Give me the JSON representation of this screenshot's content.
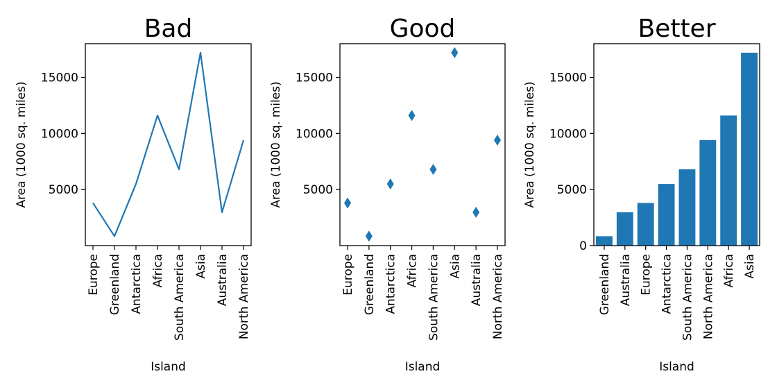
{
  "chart_data": [
    {
      "type": "line",
      "title": "Bad",
      "xlabel": "Island",
      "ylabel": "Area (1000 sq. miles)",
      "categories": [
        "Europe",
        "Greenland",
        "Antarctica",
        "Africa",
        "South America",
        "Asia",
        "Australia",
        "North America"
      ],
      "values": [
        3800,
        840,
        5500,
        11600,
        6800,
        17200,
        2970,
        9400
      ],
      "yticks": [
        "5000",
        "10000",
        "15000"
      ],
      "ylim": [
        0,
        18000
      ],
      "color": "#1f77b4"
    },
    {
      "type": "scatter",
      "title": "Good",
      "xlabel": "Island",
      "ylabel": "Area (1000 sq. miles)",
      "categories": [
        "Europe",
        "Greenland",
        "Antarctica",
        "Africa",
        "South America",
        "Asia",
        "Australia",
        "North America"
      ],
      "values": [
        3800,
        840,
        5500,
        11600,
        6800,
        17200,
        2970,
        9400
      ],
      "yticks": [
        "5000",
        "10000",
        "15000"
      ],
      "ylim": [
        0,
        18000
      ],
      "marker": "diamond",
      "color": "#1f77b4"
    },
    {
      "type": "bar",
      "title": "Better",
      "xlabel": "Island",
      "ylabel": "Area (1000 sq. miles)",
      "categories": [
        "Greenland",
        "Australia",
        "Europe",
        "Antarctica",
        "South America",
        "North America",
        "Africa",
        "Asia"
      ],
      "values": [
        840,
        2970,
        3800,
        5500,
        6800,
        9400,
        11600,
        17200
      ],
      "yticks": [
        "0",
        "5000",
        "10000",
        "15000"
      ],
      "ylim": [
        0,
        18000
      ],
      "color": "#1f77b4"
    }
  ]
}
